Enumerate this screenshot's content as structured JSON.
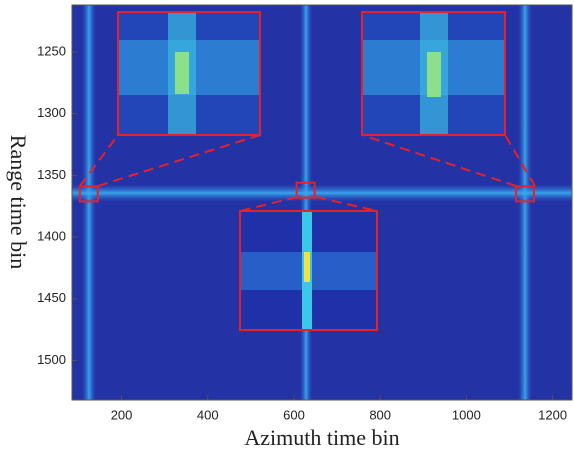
{
  "chart_data": {
    "type": "image",
    "xlabel": "Azimuth time bin",
    "ylabel": "Range  time bin",
    "xlim": [
      85,
      1245
    ],
    "ylim": [
      1212,
      1532
    ],
    "xticks": [
      200,
      400,
      600,
      800,
      1000,
      1200
    ],
    "yticks": [
      1250,
      1300,
      1350,
      1400,
      1450,
      1500
    ],
    "highlights": {
      "x": [
        124,
        627,
        1136
      ],
      "y": [
        1365,
        1362,
        1365
      ],
      "color": "#e8202a"
    }
  }
}
